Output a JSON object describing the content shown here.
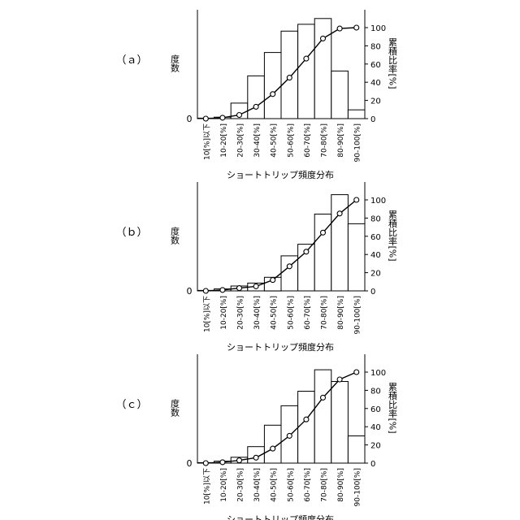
{
  "chart_data": [
    {
      "type": "bar",
      "panel_label": "（ａ）",
      "categories": [
        "10[%]以下",
        "10-20[%]",
        "20-30[%]",
        "30-40[%]",
        "40-50[%]",
        "50-60[%]",
        "60-70[%]",
        "70-80[%]",
        "80-90[%]",
        "90-100[%]"
      ],
      "xlabel": "ショートトリップ頻度分布",
      "ylabel": "度数",
      "y2label": "累積比率[%]",
      "y_zero_label": "0",
      "y2_ticks": [
        0,
        20,
        40,
        60,
        80,
        100
      ],
      "y2lim": [
        0,
        100
      ],
      "series": [
        {
          "type": "bar",
          "values": [
            0.5,
            1.5,
            16,
            44,
            68,
            90,
            97,
            103,
            49,
            9
          ]
        },
        {
          "type": "line",
          "values": [
            0,
            1,
            4,
            13,
            27,
            45,
            66,
            88,
            99,
            100
          ]
        }
      ]
    },
    {
      "type": "bar",
      "panel_label": "（ｂ）",
      "categories": [
        "10[%]以下",
        "10-20[%]",
        "20-30[%]",
        "30-40[%]",
        "40-50[%]",
        "50-60[%]",
        "60-70[%]",
        "70-80[%]",
        "80-90[%]",
        "90-100[%]"
      ],
      "xlabel": "ショートトリップ頻度分布",
      "ylabel": "度数",
      "y2label": "累積比率[%]",
      "y_zero_label": "0",
      "y2_ticks": [
        0,
        20,
        40,
        60,
        80,
        100
      ],
      "y2lim": [
        0,
        100
      ],
      "series": [
        {
          "type": "bar",
          "values": [
            0.5,
            2,
            5,
            8,
            14,
            36,
            48,
            79,
            99,
            69
          ]
        },
        {
          "type": "line",
          "values": [
            0,
            1,
            3,
            5,
            12,
            27,
            43,
            64,
            85,
            100
          ]
        }
      ]
    },
    {
      "type": "bar",
      "panel_label": "（ｃ）",
      "categories": [
        "10[%]以下",
        "10-20[%]",
        "20-30[%]",
        "30-40[%]",
        "40-50[%]",
        "50-60[%]",
        "60-70[%]",
        "70-80[%]",
        "80-90[%]",
        "90-100[%]"
      ],
      "xlabel": "ショートトリップ頻度分布",
      "ylabel": "度数",
      "y2label": "累積比率[%]",
      "y_zero_label": "0",
      "y2_ticks": [
        0,
        20,
        40,
        60,
        80,
        100
      ],
      "y2lim": [
        0,
        100
      ],
      "series": [
        {
          "type": "bar",
          "values": [
            0.5,
            2,
            6,
            17,
            39,
            59,
            74,
            96,
            84,
            28
          ]
        },
        {
          "type": "line",
          "values": [
            0,
            1,
            3,
            6,
            16,
            30,
            48,
            72,
            92,
            100
          ]
        }
      ]
    }
  ]
}
